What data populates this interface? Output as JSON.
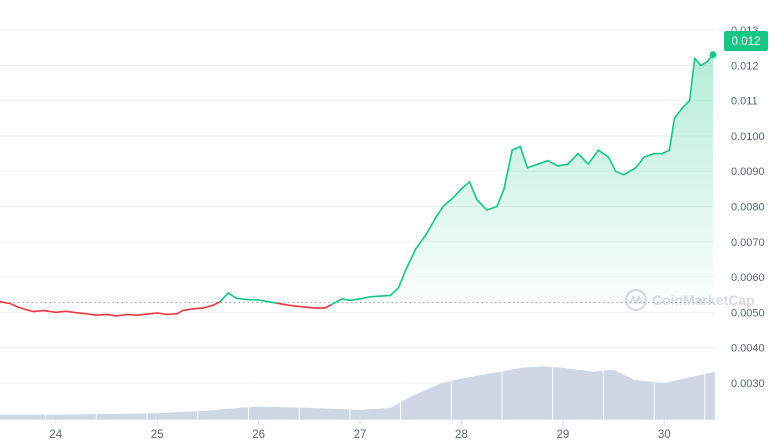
{
  "chart_data": {
    "type": "line",
    "watermark": "CoinMarketCap",
    "price_badge": "0.012",
    "x_ticks": [
      "24",
      "25",
      "26",
      "27",
      "28",
      "29",
      "30"
    ],
    "y_ticks": [
      "0.013",
      "0.012",
      "0.011",
      "0.0100",
      "0.0090",
      "0.0080",
      "0.0070",
      "0.0060",
      "0.0050",
      "0.0040",
      "0.0030"
    ],
    "y_range": [
      0.0026,
      0.0134
    ],
    "x_range": [
      23.45,
      30.5
    ],
    "reference_price": 0.00528,
    "grid": true,
    "colors": {
      "up": "#16c784",
      "down": "#ea3943",
      "volume": "#cfd6e4",
      "badge": "#16c784"
    },
    "series": [
      {
        "values": [
          [
            23.45,
            0.0053
          ],
          [
            23.55,
            0.00525
          ],
          [
            23.62,
            0.00516
          ],
          [
            23.7,
            0.00508
          ],
          [
            23.78,
            0.00502
          ],
          [
            23.88,
            0.00505
          ],
          [
            24.0,
            0.005
          ],
          [
            24.1,
            0.00503
          ],
          [
            24.2,
            0.00499
          ],
          [
            24.3,
            0.00496
          ],
          [
            24.4,
            0.00492
          ],
          [
            24.5,
            0.00494
          ],
          [
            24.6,
            0.0049
          ],
          [
            24.7,
            0.00494
          ],
          [
            24.8,
            0.00492
          ],
          [
            24.9,
            0.00495
          ],
          [
            25.0,
            0.00498
          ],
          [
            25.1,
            0.00494
          ],
          [
            25.2,
            0.00496
          ],
          [
            25.25,
            0.00505
          ],
          [
            25.35,
            0.0051
          ],
          [
            25.45,
            0.00512
          ],
          [
            25.55,
            0.0052
          ],
          [
            25.62,
            0.0053
          ],
          [
            25.7,
            0.00555
          ],
          [
            25.78,
            0.0054
          ],
          [
            25.88,
            0.00536
          ],
          [
            26.0,
            0.00535
          ],
          [
            26.1,
            0.0053
          ],
          [
            26.18,
            0.00526
          ],
          [
            26.3,
            0.0052
          ],
          [
            26.42,
            0.00516
          ],
          [
            26.55,
            0.00512
          ],
          [
            26.65,
            0.00512
          ],
          [
            26.72,
            0.00522
          ],
          [
            26.82,
            0.00538
          ],
          [
            26.9,
            0.00534
          ],
          [
            27.0,
            0.00538
          ],
          [
            27.1,
            0.00544
          ],
          [
            27.2,
            0.00546
          ],
          [
            27.3,
            0.00548
          ],
          [
            27.38,
            0.0057
          ],
          [
            27.45,
            0.0062
          ],
          [
            27.55,
            0.0068
          ],
          [
            27.65,
            0.0072
          ],
          [
            27.75,
            0.0077
          ],
          [
            27.82,
            0.008
          ],
          [
            27.9,
            0.0082
          ],
          [
            28.0,
            0.0085
          ],
          [
            28.08,
            0.0087
          ],
          [
            28.15,
            0.0082
          ],
          [
            28.25,
            0.0079
          ],
          [
            28.35,
            0.008
          ],
          [
            28.42,
            0.0085
          ],
          [
            28.5,
            0.0096
          ],
          [
            28.58,
            0.0097
          ],
          [
            28.65,
            0.0091
          ],
          [
            28.75,
            0.0092
          ],
          [
            28.85,
            0.0093
          ],
          [
            28.95,
            0.00915
          ],
          [
            29.05,
            0.0092
          ],
          [
            29.15,
            0.0095
          ],
          [
            29.25,
            0.0092
          ],
          [
            29.35,
            0.0096
          ],
          [
            29.45,
            0.0094
          ],
          [
            29.52,
            0.009
          ],
          [
            29.6,
            0.0089
          ],
          [
            29.72,
            0.0091
          ],
          [
            29.8,
            0.0094
          ],
          [
            29.9,
            0.0095
          ],
          [
            29.98,
            0.0095
          ],
          [
            30.05,
            0.0096
          ],
          [
            30.1,
            0.0105
          ],
          [
            30.18,
            0.0108
          ],
          [
            30.25,
            0.011
          ],
          [
            30.3,
            0.0122
          ],
          [
            30.36,
            0.012
          ],
          [
            30.42,
            0.0121
          ],
          [
            30.48,
            0.0123
          ]
        ]
      }
    ],
    "volume_heights": [
      [
        23.45,
        0.08
      ],
      [
        24.0,
        0.08
      ],
      [
        24.5,
        0.09
      ],
      [
        25.0,
        0.1
      ],
      [
        25.5,
        0.14
      ],
      [
        25.8,
        0.18
      ],
      [
        26.0,
        0.2
      ],
      [
        26.5,
        0.18
      ],
      [
        27.0,
        0.15
      ],
      [
        27.3,
        0.18
      ],
      [
        27.5,
        0.35
      ],
      [
        27.8,
        0.55
      ],
      [
        28.0,
        0.62
      ],
      [
        28.3,
        0.7
      ],
      [
        28.6,
        0.78
      ],
      [
        28.8,
        0.8
      ],
      [
        29.0,
        0.78
      ],
      [
        29.3,
        0.72
      ],
      [
        29.5,
        0.75
      ],
      [
        29.7,
        0.6
      ],
      [
        30.0,
        0.55
      ],
      [
        30.2,
        0.62
      ],
      [
        30.5,
        0.72
      ]
    ]
  }
}
